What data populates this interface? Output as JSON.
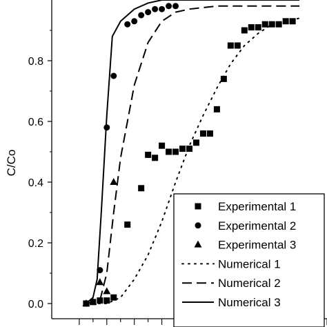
{
  "chart_data": {
    "type": "scatter",
    "ylabel": "C/Co",
    "xlabel": "",
    "title": "",
    "ylim": [
      -0.05,
      1.0
    ],
    "xlim": [
      -2,
      18
    ],
    "yticks": [
      0.0,
      0.2,
      0.4,
      0.6,
      0.8
    ],
    "legend_position": "bottom-right",
    "series": [
      {
        "name": "Experimental 1",
        "kind": "points",
        "marker": "square",
        "points": [
          [
            0.5,
            0.0
          ],
          [
            1.0,
            0.005
          ],
          [
            1.5,
            0.01
          ],
          [
            2.0,
            0.01
          ],
          [
            2.5,
            0.02
          ],
          [
            3.5,
            0.26
          ],
          [
            4.5,
            0.38
          ],
          [
            5.0,
            0.49
          ],
          [
            5.5,
            0.48
          ],
          [
            6.0,
            0.52
          ],
          [
            6.5,
            0.5
          ],
          [
            7.0,
            0.5
          ],
          [
            7.5,
            0.51
          ],
          [
            8.0,
            0.51
          ],
          [
            8.5,
            0.53
          ],
          [
            9.0,
            0.56
          ],
          [
            9.5,
            0.56
          ],
          [
            10.0,
            0.64
          ],
          [
            10.5,
            0.74
          ],
          [
            11.0,
            0.85
          ],
          [
            11.5,
            0.85
          ],
          [
            12.0,
            0.9
          ],
          [
            12.5,
            0.91
          ],
          [
            13.0,
            0.91
          ],
          [
            13.5,
            0.92
          ],
          [
            14.0,
            0.92
          ],
          [
            14.5,
            0.92
          ],
          [
            15.0,
            0.93
          ],
          [
            15.5,
            0.93
          ]
        ]
      },
      {
        "name": "Experimental 2",
        "kind": "points",
        "marker": "circle",
        "points": [
          [
            1.5,
            0.11
          ],
          [
            2.0,
            0.58
          ],
          [
            2.5,
            0.75
          ],
          [
            3.5,
            0.92
          ],
          [
            4.0,
            0.93
          ],
          [
            4.5,
            0.95
          ],
          [
            5.0,
            0.96
          ],
          [
            5.5,
            0.97
          ],
          [
            6.0,
            0.97
          ],
          [
            6.5,
            0.98
          ],
          [
            7.0,
            0.98
          ]
        ]
      },
      {
        "name": "Experimental 3",
        "kind": "points",
        "marker": "triangle",
        "points": [
          [
            0.5,
            0.0
          ],
          [
            1.0,
            0.005
          ],
          [
            1.5,
            0.07
          ],
          [
            2.0,
            0.04
          ],
          [
            2.5,
            0.4
          ]
        ]
      },
      {
        "name": "Numerical 1",
        "kind": "line",
        "dash": "dotted",
        "points": [
          [
            0.5,
            0.0
          ],
          [
            2.0,
            0.0
          ],
          [
            3.0,
            0.02
          ],
          [
            4.0,
            0.08
          ],
          [
            5.0,
            0.16
          ],
          [
            6.0,
            0.27
          ],
          [
            7.0,
            0.4
          ],
          [
            8.0,
            0.52
          ],
          [
            9.0,
            0.62
          ],
          [
            10.0,
            0.71
          ],
          [
            11.0,
            0.79
          ],
          [
            12.0,
            0.85
          ],
          [
            13.0,
            0.89
          ],
          [
            14.0,
            0.92
          ],
          [
            16.0,
            0.94
          ]
        ]
      },
      {
        "name": "Numerical 2",
        "kind": "line",
        "dash": "dashed",
        "points": [
          [
            0.5,
            0.0
          ],
          [
            1.5,
            0.01
          ],
          [
            2.0,
            0.1
          ],
          [
            2.5,
            0.3
          ],
          [
            3.0,
            0.48
          ],
          [
            4.0,
            0.72
          ],
          [
            5.0,
            0.86
          ],
          [
            6.0,
            0.93
          ],
          [
            7.0,
            0.96
          ],
          [
            8.0,
            0.97
          ],
          [
            10.0,
            0.98
          ],
          [
            16.0,
            0.98
          ]
        ]
      },
      {
        "name": "Numerical 3",
        "kind": "line",
        "dash": "solid",
        "points": [
          [
            0.5,
            0.0
          ],
          [
            1.0,
            0.02
          ],
          [
            1.3,
            0.08
          ],
          [
            1.6,
            0.3
          ],
          [
            2.0,
            0.62
          ],
          [
            2.4,
            0.88
          ],
          [
            3.0,
            0.93
          ],
          [
            4.0,
            0.97
          ],
          [
            5.0,
            0.99
          ],
          [
            6.0,
            1.0
          ],
          [
            16.0,
            1.0
          ]
        ]
      }
    ]
  }
}
